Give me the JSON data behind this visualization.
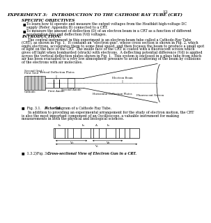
{
  "page_number": "12",
  "title": "EXPERIMENT 3:   INTRODUCTION TO THE CATHODE RAY TUBE (CRT)",
  "section1_header": "SPECIFIC OBJECTIVES",
  "bullet1a": "To learn how to operate and measure the output voltages from the Heathkit high-voltage DC",
  "bullet1b": "supply (Refer: Appendix B) connected to a CRT.",
  "bullet2a": "To measure the amount of deflection (D) of an electron beam in a CRT as a function of different",
  "bullet2b": "acceleration (Va) and deflection (Vd) voltages.",
  "section2_header": "INTRODUCTION:",
  "intro_line1": "      The central instrument in this experiment is an electron-beam tube called a Cathode-Ray Tube",
  "intro_line2": "(CRT), as shown in Fig. 1.  It contains an \"electron gun\", whose cross section is shown in Fig. 2, which",
  "intro_line3": "emits electrons, accelerates them to some final speed, and then focuses the beam to produce a small spot",
  "intro_line4": "of light on the face of the CRT.  The inside face of the CRT is coated with a fluorescent screen which",
  "intro_line5": "gives off light when bombarded (struck) with electrons.  A deflecting potential difference (Vd) is applied",
  "intro_line6": "across the vertical deflection plates shown in Fig. 1.  This system is enclosed in a glass tube from which",
  "intro_line7": "air has been evacuated to a very low atmospheric pressure to avoid scattering of the beam by collisions",
  "intro_line8": "of the electrons with air molecules.",
  "fig1_prefix": "■  Fig. 3.1.  ",
  "fig1_bold": "Pictorial",
  "fig1_suffix": " Diagram of a Cathode Ray Tube.",
  "mid_line1": "      In addition to providing an experimental arrangement for the study of electron motion, the CRT",
  "mid_line2": "is also the most important component of an Oscilloscope, a valuable instrument for making",
  "mid_line3": "measurements in both the physical and biological sciences.",
  "fig2_prefix": "■  1.3.2)Fig. 3.2.  ",
  "fig2_bold": "Cross-sectional View of Electron Gun in a CRT.",
  "bg_color": "#ffffff",
  "text_color": "#000000",
  "gray_color": "#888888"
}
